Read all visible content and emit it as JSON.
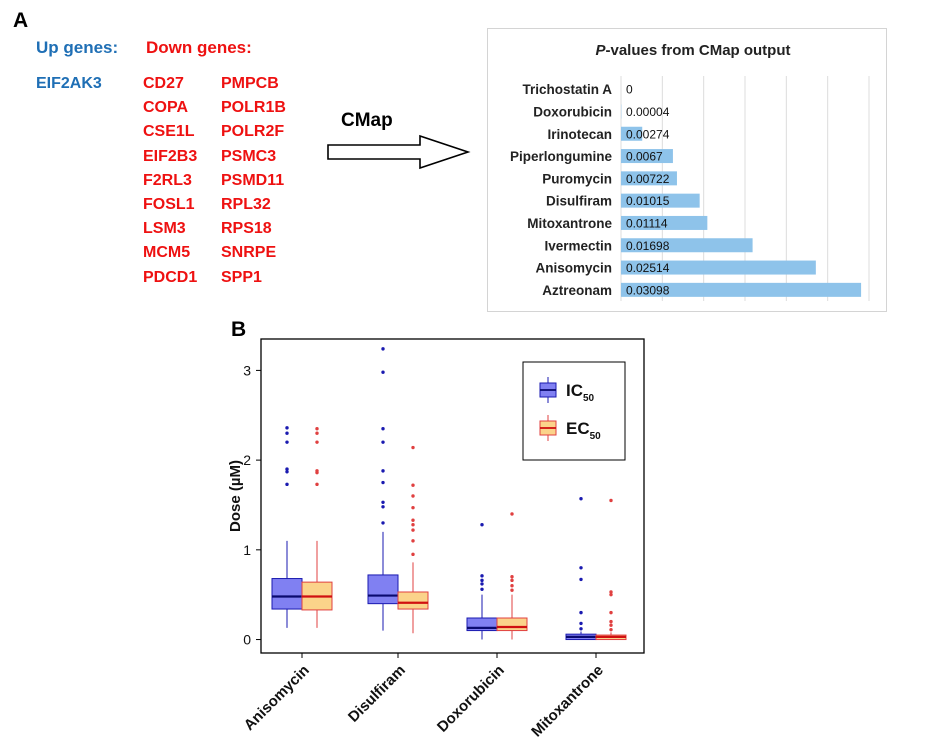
{
  "panel_a": {
    "letter": "A",
    "up_header": "Up genes:",
    "down_header": "Down genes:",
    "up_genes": [
      "EIF2AK3"
    ],
    "down_genes_col1": [
      "CD27",
      "COPA",
      "CSE1L",
      "EIF2B3",
      "F2RL3",
      "FOSL1",
      "LSM3",
      "MCM5",
      "PDCD1"
    ],
    "down_genes_col2": [
      "PMPCB",
      "POLR1B",
      "POLR2F",
      "PSMC3",
      "PSMD11",
      "RPL32",
      "RPS18",
      "SNRPE",
      "SPP1"
    ],
    "arrow_label": "CMap"
  },
  "panel_b": {
    "letter": "B"
  },
  "chart_data": [
    {
      "type": "bar",
      "orientation": "horizontal",
      "title_italic": "P",
      "title_rest": "-values from CMap output",
      "categories": [
        "Trichostatin A",
        "Doxorubicin",
        "Irinotecan",
        "Piperlongumine",
        "Puromycin",
        "Disulfiram",
        "Mitoxantrone",
        "Ivermectin",
        "Anisomycin",
        "Aztreonam"
      ],
      "values": [
        0,
        4e-05,
        0.00274,
        0.0067,
        0.00722,
        0.01015,
        0.01114,
        0.01698,
        0.02514,
        0.03098
      ],
      "value_labels": [
        "0",
        "0.00004",
        "0.00274",
        "0.0067",
        "0.00722",
        "0.01015",
        "0.01114",
        "0.01698",
        "0.02514",
        "0.03098"
      ],
      "xlim": [
        0,
        0.032
      ],
      "grid": true,
      "bar_color": "#8ec3ea"
    },
    {
      "type": "box",
      "categories": [
        "Anisomycin",
        "Disulfiram",
        "Doxorubicin",
        "Mitoxantrone"
      ],
      "ylabel": "Dose (µM)",
      "ylim": [
        -0.15,
        3.35
      ],
      "yticks": [
        "0",
        "1",
        "2",
        "3"
      ],
      "legend_position": "top-right",
      "series": [
        {
          "name": "IC",
          "subscript": "50",
          "fill": "#8080f2",
          "edge": "#1a1ab0",
          "median_color": "#0a0a70",
          "boxes": [
            {
              "q1": 0.34,
              "median": 0.48,
              "q3": 0.68,
              "low": 0.13,
              "high": 1.1,
              "outliers": [
                1.73,
                1.87,
                1.9,
                2.2,
                2.3,
                2.36
              ]
            },
            {
              "q1": 0.4,
              "median": 0.49,
              "q3": 0.72,
              "low": 0.1,
              "high": 1.2,
              "outliers": [
                1.3,
                1.48,
                1.53,
                1.75,
                1.88,
                2.2,
                2.35,
                2.98,
                3.24
              ]
            },
            {
              "q1": 0.1,
              "median": 0.13,
              "q3": 0.24,
              "low": 0.0,
              "high": 0.5,
              "outliers": [
                0.56,
                0.62,
                0.66,
                0.71,
                1.28
              ]
            },
            {
              "q1": 0.0,
              "median": 0.03,
              "q3": 0.06,
              "low": 0.0,
              "high": 0.09,
              "outliers": [
                0.12,
                0.18,
                0.3,
                0.67,
                0.8,
                1.57
              ]
            }
          ]
        },
        {
          "name": "EC",
          "subscript": "50",
          "fill": "#fbd38a",
          "edge": "#e04040",
          "median_color": "#d01010",
          "boxes": [
            {
              "q1": 0.33,
              "median": 0.48,
              "q3": 0.64,
              "low": 0.13,
              "high": 1.1,
              "outliers": [
                1.73,
                1.86,
                1.88,
                2.2,
                2.3,
                2.35
              ]
            },
            {
              "q1": 0.34,
              "median": 0.41,
              "q3": 0.53,
              "low": 0.07,
              "high": 0.86,
              "outliers": [
                0.95,
                1.1,
                1.22,
                1.28,
                1.33,
                1.47,
                1.6,
                1.72,
                2.14
              ]
            },
            {
              "q1": 0.1,
              "median": 0.14,
              "q3": 0.24,
              "low": 0.0,
              "high": 0.5,
              "outliers": [
                0.55,
                0.6,
                0.66,
                0.7,
                1.4
              ]
            },
            {
              "q1": 0.0,
              "median": 0.03,
              "q3": 0.05,
              "low": 0.0,
              "high": 0.08,
              "outliers": [
                0.11,
                0.16,
                0.2,
                0.3,
                0.5,
                0.53,
                1.55
              ]
            }
          ]
        }
      ]
    }
  ]
}
